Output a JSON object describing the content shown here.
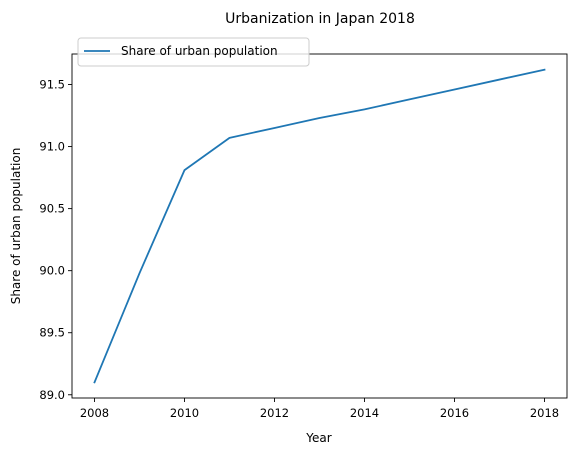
{
  "chart_data": {
    "type": "line",
    "title": "Urbanization in Japan 2018",
    "xlabel": "Year",
    "ylabel": "Share of urban population",
    "x": [
      2008,
      2009,
      2010,
      2011,
      2012,
      2013,
      2014,
      2015,
      2016,
      2017,
      2018
    ],
    "series": [
      {
        "name": "Share of urban population",
        "values": [
          89.1,
          89.98,
          90.81,
          91.07,
          91.15,
          91.23,
          91.3,
          91.38,
          91.46,
          91.54,
          91.62
        ],
        "color": "#1f77b4"
      }
    ],
    "xlim": [
      2007.5,
      2018.5
    ],
    "ylim": [
      88.974,
      91.746
    ],
    "xticks": [
      2008,
      2010,
      2012,
      2014,
      2016,
      2018
    ],
    "xtick_labels": [
      "2008",
      "2010",
      "2012",
      "2014",
      "2016",
      "2018"
    ],
    "yticks": [
      89.0,
      89.5,
      90.0,
      90.5,
      91.0,
      91.5
    ],
    "ytick_labels": [
      "89.0",
      "89.5",
      "90.0",
      "90.5",
      "91.0",
      "91.5"
    ],
    "grid": false,
    "legend": "top-left"
  }
}
